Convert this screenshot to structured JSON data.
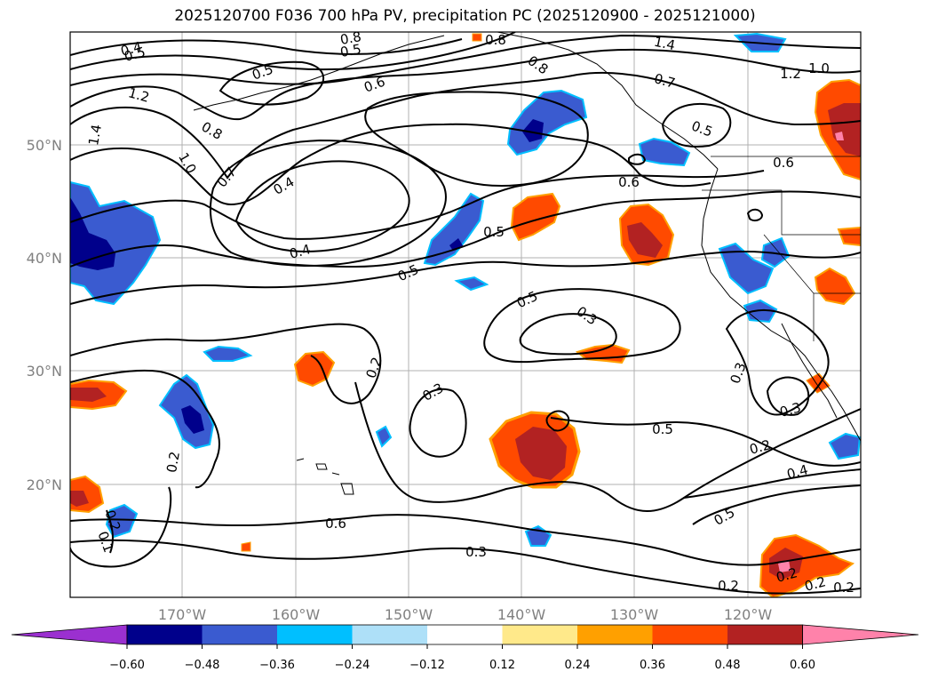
{
  "title": "2025120700 F036 700 hPa PV, precipitation PC (2025120900 - 2025121000)",
  "lon_ticks": [
    "170°W",
    "160°W",
    "150°W",
    "140°W",
    "130°W",
    "120°W"
  ],
  "lat_ticks": [
    "50°N",
    "40°N",
    "30°N",
    "20°N"
  ],
  "colorbar": {
    "ticks": [
      "−0.60",
      "−0.48",
      "−0.36",
      "−0.24",
      "−0.12",
      "0.12",
      "0.24",
      "0.36",
      "0.48",
      "0.60"
    ],
    "colors": [
      "#9b30d0",
      "#00008b",
      "#3a5bd0",
      "#00bfff",
      "#aee0f8",
      "#ffffff",
      "#ffe98a",
      "#ffa000",
      "#ff4a00",
      "#b22222",
      "#ff82aa"
    ]
  },
  "contour_labels": [
    "0.4",
    "0.5",
    "0.8",
    "0.5",
    "0.8",
    "1.4",
    "1.2",
    "1.0",
    "1.2",
    "1.4",
    "1.0",
    "0.8",
    "0.7",
    "0.4",
    "0.5",
    "0.6",
    "0.8",
    "0.7",
    "0.5",
    "0.6",
    "0.5",
    "0.6",
    "0.5",
    "0.4",
    "0.5",
    "0.3",
    "0.2",
    "0.3",
    "0.5",
    "0.3",
    "0.3",
    "0.2",
    "0.2",
    "0.4",
    "0.5",
    "0.6",
    "0.3",
    "0.2",
    "0.2",
    "0.2",
    "0.1",
    "0.2",
    "0.2"
  ],
  "shading_colors": {
    "dark_blue": "#00008b",
    "mid_blue": "#3a5bd0",
    "light_blue": "#00bfff",
    "yellow": "#ffe98a",
    "orange": "#ffa000",
    "red_orange": "#ff4a00",
    "dark_red": "#b22222",
    "pink": "#ff82aa"
  }
}
